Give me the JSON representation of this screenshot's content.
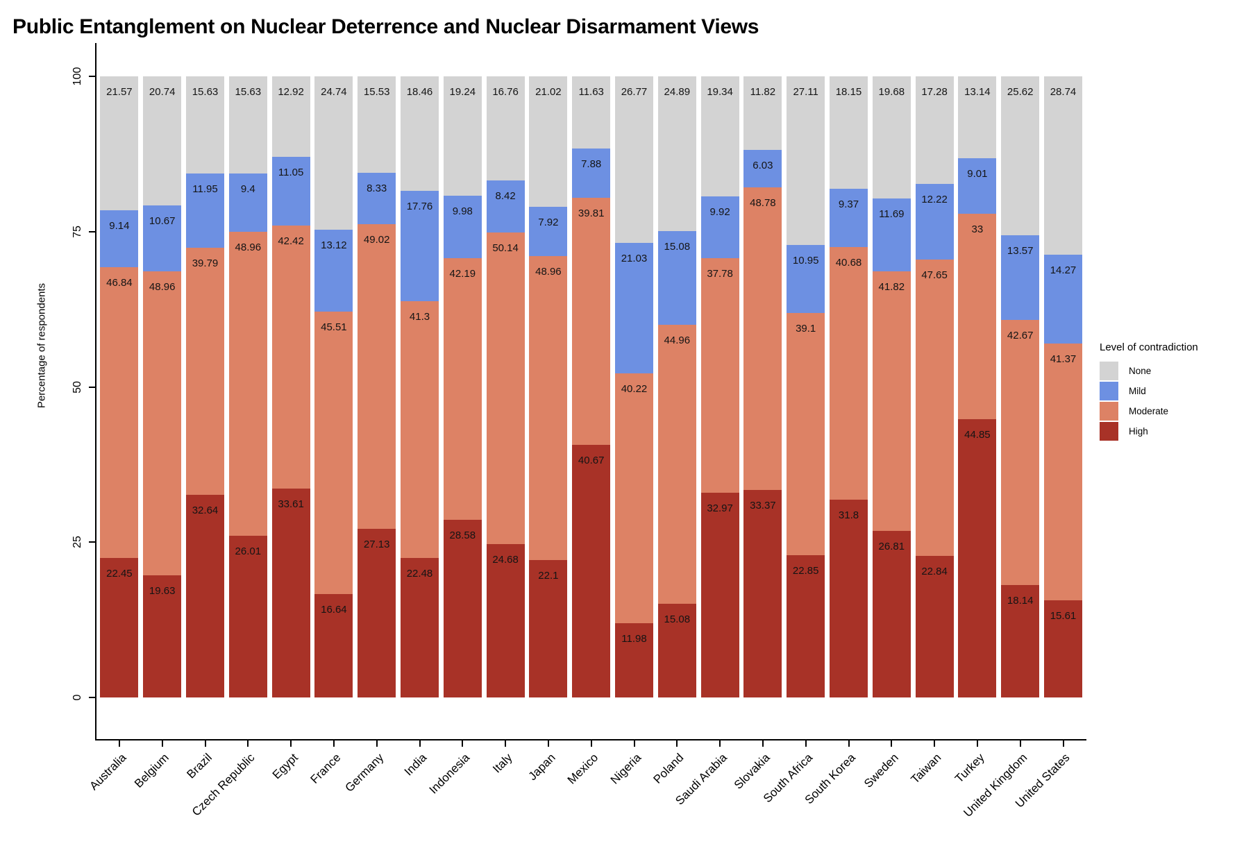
{
  "title": "Public Entanglement on Nuclear Deterrence and Nuclear Disarmament Views",
  "chart_data": {
    "type": "bar",
    "stacked": true,
    "orientation": "vertical",
    "title": "Public Entanglement on Nuclear Deterrence and Nuclear Disarmament Views",
    "xlabel": "",
    "ylabel": "Percentage of respondents",
    "ylim": [
      0,
      100
    ],
    "yticks": [
      0,
      25,
      50,
      75,
      100
    ],
    "grid": false,
    "bar_value_labels": true,
    "label_color": "#141414",
    "legend": {
      "title": "Level of contradiction",
      "position": "right",
      "items": [
        {
          "label": "None",
          "color": "#d3d3d3"
        },
        {
          "label": "Mild",
          "color": "#6d90e2"
        },
        {
          "label": "Moderate",
          "color": "#dd8265"
        },
        {
          "label": "High",
          "color": "#a83227"
        }
      ]
    },
    "categories": [
      "Australia",
      "Belgium",
      "Brazil",
      "Czech Republic",
      "Egypt",
      "France",
      "Germany",
      "India",
      "Indonesia",
      "Italy",
      "Japan",
      "Mexico",
      "Nigeria",
      "Poland",
      "Saudi Arabia",
      "Slovakia",
      "South Africa",
      "South Korea",
      "Sweden",
      "Taiwan",
      "Turkey",
      "United Kingdom",
      "United States"
    ],
    "series": [
      {
        "name": "High",
        "color": "#a83227",
        "values": [
          22.45,
          19.63,
          32.64,
          26.01,
          33.61,
          16.64,
          27.13,
          22.48,
          28.58,
          24.68,
          22.1,
          40.67,
          11.98,
          15.08,
          32.97,
          33.37,
          22.85,
          31.8,
          26.81,
          22.84,
          44.85,
          18.14,
          15.61
        ]
      },
      {
        "name": "Moderate",
        "color": "#dd8265",
        "values": [
          46.84,
          48.96,
          39.79,
          48.96,
          42.42,
          45.51,
          49.02,
          41.3,
          42.19,
          50.14,
          48.96,
          39.81,
          40.22,
          44.96,
          37.78,
          48.78,
          39.1,
          40.68,
          41.82,
          47.65,
          33,
          42.67,
          41.37
        ]
      },
      {
        "name": "Mild",
        "color": "#6d90e2",
        "values": [
          9.14,
          10.67,
          11.95,
          9.4,
          11.05,
          13.12,
          8.33,
          17.76,
          9.98,
          8.42,
          7.92,
          7.88,
          21.03,
          15.08,
          9.92,
          6.03,
          10.95,
          9.37,
          11.69,
          12.22,
          9.01,
          13.57,
          14.27
        ]
      },
      {
        "name": "None",
        "color": "#d3d3d3",
        "values": [
          21.57,
          20.74,
          15.63,
          15.63,
          12.92,
          24.74,
          15.53,
          18.46,
          19.24,
          16.76,
          21.02,
          11.63,
          26.77,
          24.89,
          19.34,
          11.82,
          27.11,
          18.15,
          19.68,
          17.28,
          13.14,
          25.62,
          28.74
        ]
      }
    ]
  }
}
